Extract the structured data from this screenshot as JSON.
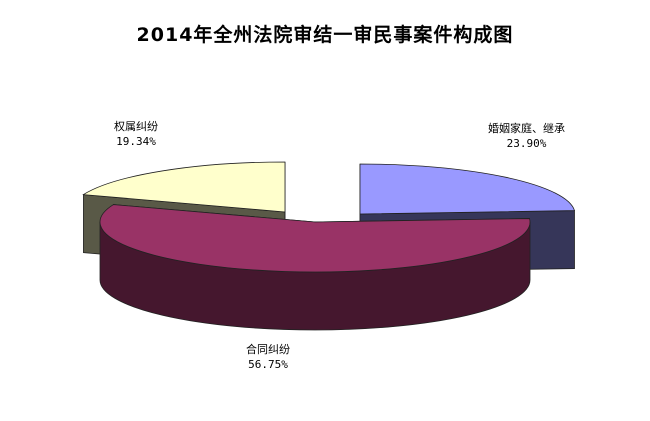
{
  "chart_data": {
    "type": "pie",
    "title": "2014年全州法院审结一审民事案件构成图",
    "slices": [
      {
        "label": "婚姻家庭、继承",
        "value": 23.9,
        "value_label": "23.90%",
        "color": "#9999FF"
      },
      {
        "label": "合同纠纷",
        "value": 56.75,
        "value_label": "56.75%",
        "color": "#993366"
      },
      {
        "label": "权属纠纷",
        "value": 19.34,
        "value_label": "19.34%",
        "color": "#FFFFCC"
      }
    ],
    "exploded": true,
    "three_d": true,
    "legend": "none"
  }
}
